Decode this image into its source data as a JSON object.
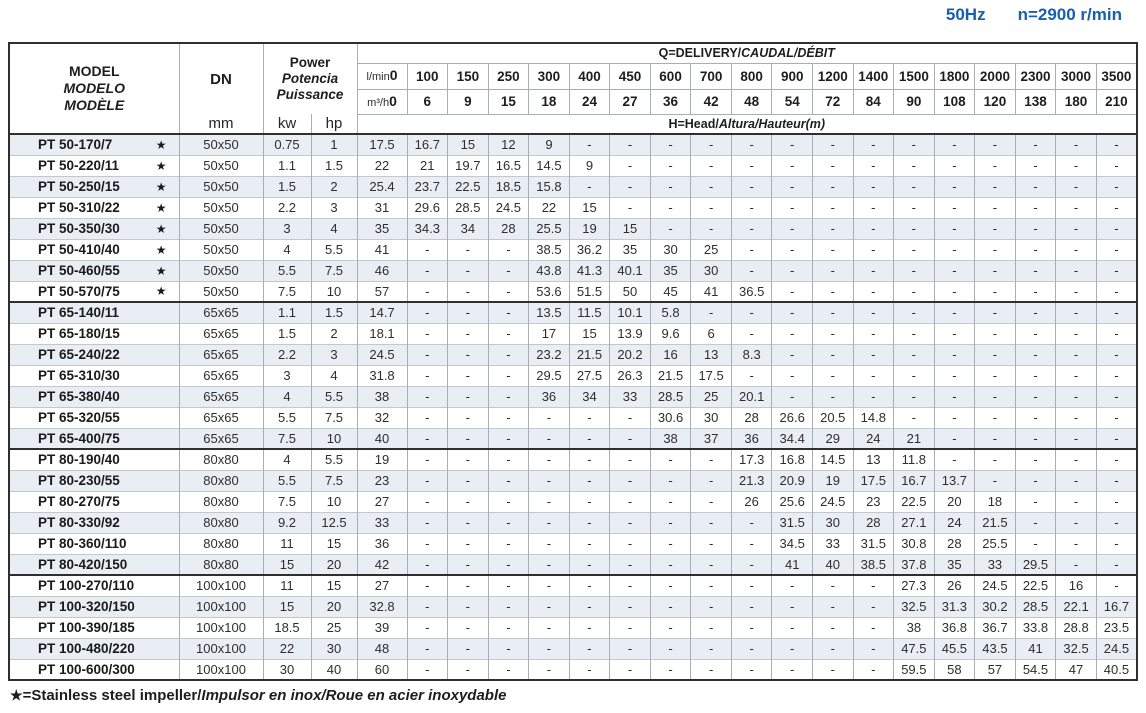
{
  "page": {
    "frequency": "50Hz",
    "speed": "n=2900 r/min"
  },
  "table": {
    "header": {
      "model": {
        "en": "MODEL",
        "es": "MODELO",
        "fr": "MODÈLE"
      },
      "dn": {
        "label": "DN",
        "unit": "mm"
      },
      "power": {
        "en": "Power",
        "es": "Potencia",
        "fr": "Puissance",
        "unit_kw": "kw",
        "unit_hp": "hp"
      },
      "delivery_title": {
        "en": "Q=DELIVERY/",
        "intl": "CAUDAL/DÉBIT"
      },
      "head_title": {
        "en": "H=Head/",
        "intl": "Altura/Hauteur(m)"
      },
      "flow_lmin": {
        "label": "l/min",
        "zero": "0",
        "values": [
          "100",
          "150",
          "250",
          "300",
          "400",
          "450",
          "600",
          "700",
          "800",
          "900",
          "1200",
          "1400",
          "1500",
          "1800",
          "2000",
          "2300",
          "3000",
          "3500"
        ]
      },
      "flow_m3h": {
        "label": "m³/h",
        "zero": "0",
        "values": [
          "6",
          "9",
          "15",
          "18",
          "24",
          "27",
          "36",
          "42",
          "48",
          "54",
          "72",
          "84",
          "90",
          "108",
          "120",
          "138",
          "180",
          "210"
        ]
      }
    },
    "groups": [
      {
        "rows": [
          {
            "model": "PT 50-170/7",
            "star": "★",
            "dn": "50x50",
            "kw": "0.75",
            "hp": "1",
            "values": [
              "17.5",
              "16.7",
              "15",
              "12",
              "9",
              "-",
              "-",
              "-",
              "-",
              "-",
              "-",
              "-",
              "-",
              "-",
              "-",
              "-",
              "-",
              "-",
              "-"
            ]
          },
          {
            "model": "PT 50-220/11",
            "star": "★",
            "dn": "50x50",
            "kw": "1.1",
            "hp": "1.5",
            "values": [
              "22",
              "21",
              "19.7",
              "16.5",
              "14.5",
              "9",
              "-",
              "-",
              "-",
              "-",
              "-",
              "-",
              "-",
              "-",
              "-",
              "-",
              "-",
              "-",
              "-"
            ]
          },
          {
            "model": "PT 50-250/15",
            "star": "★",
            "dn": "50x50",
            "kw": "1.5",
            "hp": "2",
            "values": [
              "25.4",
              "23.7",
              "22.5",
              "18.5",
              "15.8",
              "-",
              "-",
              "-",
              "-",
              "-",
              "-",
              "-",
              "-",
              "-",
              "-",
              "-",
              "-",
              "-",
              "-"
            ]
          },
          {
            "model": "PT 50-310/22",
            "star": "★",
            "dn": "50x50",
            "kw": "2.2",
            "hp": "3",
            "values": [
              "31",
              "29.6",
              "28.5",
              "24.5",
              "22",
              "15",
              "-",
              "-",
              "-",
              "-",
              "-",
              "-",
              "-",
              "-",
              "-",
              "-",
              "-",
              "-",
              "-"
            ]
          },
          {
            "model": "PT 50-350/30",
            "star": "★",
            "dn": "50x50",
            "kw": "3",
            "hp": "4",
            "values": [
              "35",
              "34.3",
              "34",
              "28",
              "25.5",
              "19",
              "15",
              "-",
              "-",
              "-",
              "-",
              "-",
              "-",
              "-",
              "-",
              "-",
              "-",
              "-",
              "-"
            ]
          },
          {
            "model": "PT 50-410/40",
            "star": "★",
            "dn": "50x50",
            "kw": "4",
            "hp": "5.5",
            "values": [
              "41",
              "-",
              "-",
              "-",
              "38.5",
              "36.2",
              "35",
              "30",
              "25",
              "-",
              "-",
              "-",
              "-",
              "-",
              "-",
              "-",
              "-",
              "-",
              "-"
            ]
          },
          {
            "model": "PT 50-460/55",
            "star": "★",
            "dn": "50x50",
            "kw": "5.5",
            "hp": "7.5",
            "values": [
              "46",
              "-",
              "-",
              "-",
              "43.8",
              "41.3",
              "40.1",
              "35",
              "30",
              "-",
              "-",
              "-",
              "-",
              "-",
              "-",
              "-",
              "-",
              "-",
              "-"
            ]
          },
          {
            "model": "PT 50-570/75",
            "star": "★",
            "dn": "50x50",
            "kw": "7.5",
            "hp": "10",
            "values": [
              "57",
              "-",
              "-",
              "-",
              "53.6",
              "51.5",
              "50",
              "45",
              "41",
              "36.5",
              "-",
              "-",
              "-",
              "-",
              "-",
              "-",
              "-",
              "-",
              "-"
            ]
          }
        ]
      },
      {
        "rows": [
          {
            "model": "PT 65-140/11",
            "star": "",
            "dn": "65x65",
            "kw": "1.1",
            "hp": "1.5",
            "values": [
              "14.7",
              "-",
              "-",
              "-",
              "13.5",
              "11.5",
              "10.1",
              "5.8",
              "-",
              "-",
              "-",
              "-",
              "-",
              "-",
              "-",
              "-",
              "-",
              "-",
              "-"
            ]
          },
          {
            "model": "PT 65-180/15",
            "star": "",
            "dn": "65x65",
            "kw": "1.5",
            "hp": "2",
            "values": [
              "18.1",
              "-",
              "-",
              "-",
              "17",
              "15",
              "13.9",
              "9.6",
              "6",
              "-",
              "-",
              "-",
              "-",
              "-",
              "-",
              "-",
              "-",
              "-",
              "-"
            ]
          },
          {
            "model": "PT 65-240/22",
            "star": "",
            "dn": "65x65",
            "kw": "2.2",
            "hp": "3",
            "values": [
              "24.5",
              "-",
              "-",
              "-",
              "23.2",
              "21.5",
              "20.2",
              "16",
              "13",
              "8.3",
              "-",
              "-",
              "-",
              "-",
              "-",
              "-",
              "-",
              "-",
              "-"
            ]
          },
          {
            "model": "PT 65-310/30",
            "star": "",
            "dn": "65x65",
            "kw": "3",
            "hp": "4",
            "values": [
              "31.8",
              "-",
              "-",
              "-",
              "29.5",
              "27.5",
              "26.3",
              "21.5",
              "17.5",
              "-",
              "-",
              "-",
              "-",
              "-",
              "-",
              "-",
              "-",
              "-",
              "-"
            ]
          },
          {
            "model": "PT 65-380/40",
            "star": "",
            "dn": "65x65",
            "kw": "4",
            "hp": "5.5",
            "values": [
              "38",
              "-",
              "-",
              "-",
              "36",
              "34",
              "33",
              "28.5",
              "25",
              "20.1",
              "-",
              "-",
              "-",
              "-",
              "-",
              "-",
              "-",
              "-",
              "-"
            ]
          },
          {
            "model": "PT 65-320/55",
            "star": "",
            "dn": "65x65",
            "kw": "5.5",
            "hp": "7.5",
            "values": [
              "32",
              "-",
              "-",
              "-",
              "-",
              "-",
              "-",
              "30.6",
              "30",
              "28",
              "26.6",
              "20.5",
              "14.8",
              "-",
              "-",
              "-",
              "-",
              "-",
              "-"
            ]
          },
          {
            "model": "PT 65-400/75",
            "star": "",
            "dn": "65x65",
            "kw": "7.5",
            "hp": "10",
            "values": [
              "40",
              "-",
              "-",
              "-",
              "-",
              "-",
              "-",
              "38",
              "37",
              "36",
              "34.4",
              "29",
              "24",
              "21",
              "-",
              "-",
              "-",
              "-",
              "-"
            ]
          }
        ]
      },
      {
        "rows": [
          {
            "model": "PT 80-190/40",
            "star": "",
            "dn": "80x80",
            "kw": "4",
            "hp": "5.5",
            "values": [
              "19",
              "-",
              "-",
              "-",
              "-",
              "-",
              "-",
              "-",
              "-",
              "17.3",
              "16.8",
              "14.5",
              "13",
              "11.8",
              "-",
              "-",
              "-",
              "-",
              "-"
            ]
          },
          {
            "model": "PT 80-230/55",
            "star": "",
            "dn": "80x80",
            "kw": "5.5",
            "hp": "7.5",
            "values": [
              "23",
              "-",
              "-",
              "-",
              "-",
              "-",
              "-",
              "-",
              "-",
              "21.3",
              "20.9",
              "19",
              "17.5",
              "16.7",
              "13.7",
              "-",
              "-",
              "-",
              "-"
            ]
          },
          {
            "model": "PT 80-270/75",
            "star": "",
            "dn": "80x80",
            "kw": "7.5",
            "hp": "10",
            "values": [
              "27",
              "-",
              "-",
              "-",
              "-",
              "-",
              "-",
              "-",
              "-",
              "26",
              "25.6",
              "24.5",
              "23",
              "22.5",
              "20",
              "18",
              "-",
              "-",
              "-"
            ]
          },
          {
            "model": "PT 80-330/92",
            "star": "",
            "dn": "80x80",
            "kw": "9.2",
            "hp": "12.5",
            "values": [
              "33",
              "-",
              "-",
              "-",
              "-",
              "-",
              "-",
              "-",
              "-",
              "-",
              "31.5",
              "30",
              "28",
              "27.1",
              "24",
              "21.5",
              "-",
              "-",
              "-"
            ]
          },
          {
            "model": "PT 80-360/110",
            "star": "",
            "dn": "80x80",
            "kw": "11",
            "hp": "15",
            "values": [
              "36",
              "-",
              "-",
              "-",
              "-",
              "-",
              "-",
              "-",
              "-",
              "-",
              "34.5",
              "33",
              "31.5",
              "30.8",
              "28",
              "25.5",
              "-",
              "-",
              "-"
            ]
          },
          {
            "model": "PT 80-420/150",
            "star": "",
            "dn": "80x80",
            "kw": "15",
            "hp": "20",
            "values": [
              "42",
              "-",
              "-",
              "-",
              "-",
              "-",
              "-",
              "-",
              "-",
              "-",
              "41",
              "40",
              "38.5",
              "37.8",
              "35",
              "33",
              "29.5",
              "-",
              "-"
            ]
          }
        ]
      },
      {
        "rows": [
          {
            "model": "PT 100-270/110",
            "star": "",
            "dn": "100x100",
            "kw": "11",
            "hp": "15",
            "values": [
              "27",
              "-",
              "-",
              "-",
              "-",
              "-",
              "-",
              "-",
              "-",
              "-",
              "-",
              "-",
              "-",
              "27.3",
              "26",
              "24.5",
              "22.5",
              "16",
              "-"
            ]
          },
          {
            "model": "PT 100-320/150",
            "star": "",
            "dn": "100x100",
            "kw": "15",
            "hp": "20",
            "values": [
              "32.8",
              "-",
              "-",
              "-",
              "-",
              "-",
              "-",
              "-",
              "-",
              "-",
              "-",
              "-",
              "-",
              "32.5",
              "31.3",
              "30.2",
              "28.5",
              "22.1",
              "16.7"
            ]
          },
          {
            "model": "PT 100-390/185",
            "star": "",
            "dn": "100x100",
            "kw": "18.5",
            "hp": "25",
            "values": [
              "39",
              "-",
              "-",
              "-",
              "-",
              "-",
              "-",
              "-",
              "-",
              "-",
              "-",
              "-",
              "-",
              "38",
              "36.8",
              "36.7",
              "33.8",
              "28.8",
              "23.5"
            ]
          },
          {
            "model": "PT 100-480/220",
            "star": "",
            "dn": "100x100",
            "kw": "22",
            "hp": "30",
            "values": [
              "48",
              "-",
              "-",
              "-",
              "-",
              "-",
              "-",
              "-",
              "-",
              "-",
              "-",
              "-",
              "-",
              "47.5",
              "45.5",
              "43.5",
              "41",
              "32.5",
              "24.5"
            ]
          },
          {
            "model": "PT 100-600/300",
            "star": "",
            "dn": "100x100",
            "kw": "30",
            "hp": "40",
            "values": [
              "60",
              "-",
              "-",
              "-",
              "-",
              "-",
              "-",
              "-",
              "-",
              "-",
              "-",
              "-",
              "-",
              "59.5",
              "58",
              "57",
              "54.5",
              "47",
              "40.5"
            ]
          }
        ]
      }
    ]
  },
  "footnote": {
    "star": "★",
    "en": "=Stainless steel impeller/",
    "intl": "Impulsor en inox/Roue en acier inoxydable"
  }
}
